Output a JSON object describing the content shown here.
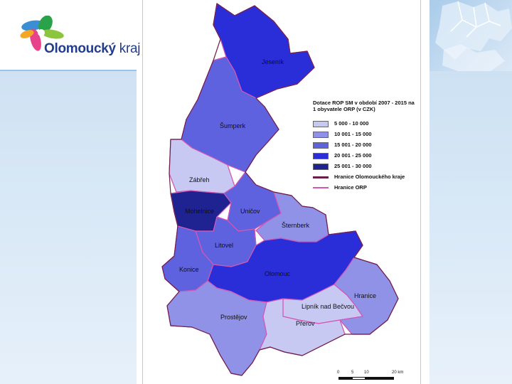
{
  "logo": {
    "name_bold": "Olomoucký",
    "name_regular": " kraj"
  },
  "legend": {
    "title": "Dotace ROP SM v období 2007 - 2015 na 1 obyvatele ORP (v CZK)",
    "classes": [
      {
        "label": "5 000 - 10 000",
        "color": "#c7c9f2"
      },
      {
        "label": "10 001 - 15 000",
        "color": "#8f92e6"
      },
      {
        "label": "15 001 - 20 000",
        "color": "#5f62df"
      },
      {
        "label": "20 001 - 25 000",
        "color": "#2a2ed8"
      },
      {
        "label": "25 001 - 30 000",
        "color": "#1f2291"
      }
    ],
    "boundaries": [
      {
        "label": "Hranice Olomouckého kraje",
        "color": "#6b1e4a"
      },
      {
        "label": "Hranice ORP",
        "color": "#d257b6"
      }
    ]
  },
  "regions": [
    {
      "name": "Jeseník",
      "class": 3
    },
    {
      "name": "Šumperk",
      "class": 2
    },
    {
      "name": "Zábřeh",
      "class": 0
    },
    {
      "name": "Mohelnice",
      "class": 4
    },
    {
      "name": "Uničov",
      "class": 2
    },
    {
      "name": "Šternberk",
      "class": 1
    },
    {
      "name": "Litovel",
      "class": 2
    },
    {
      "name": "Konice",
      "class": 2
    },
    {
      "name": "Olomouc",
      "class": 3
    },
    {
      "name": "Prostějov",
      "class": 1
    },
    {
      "name": "Lipník nad Bečvou",
      "class": 0
    },
    {
      "name": "Přerov",
      "class": 0
    },
    {
      "name": "Hranice",
      "class": 1
    }
  ],
  "scale": {
    "labels": [
      "0",
      "5",
      "10",
      "20 km"
    ]
  }
}
